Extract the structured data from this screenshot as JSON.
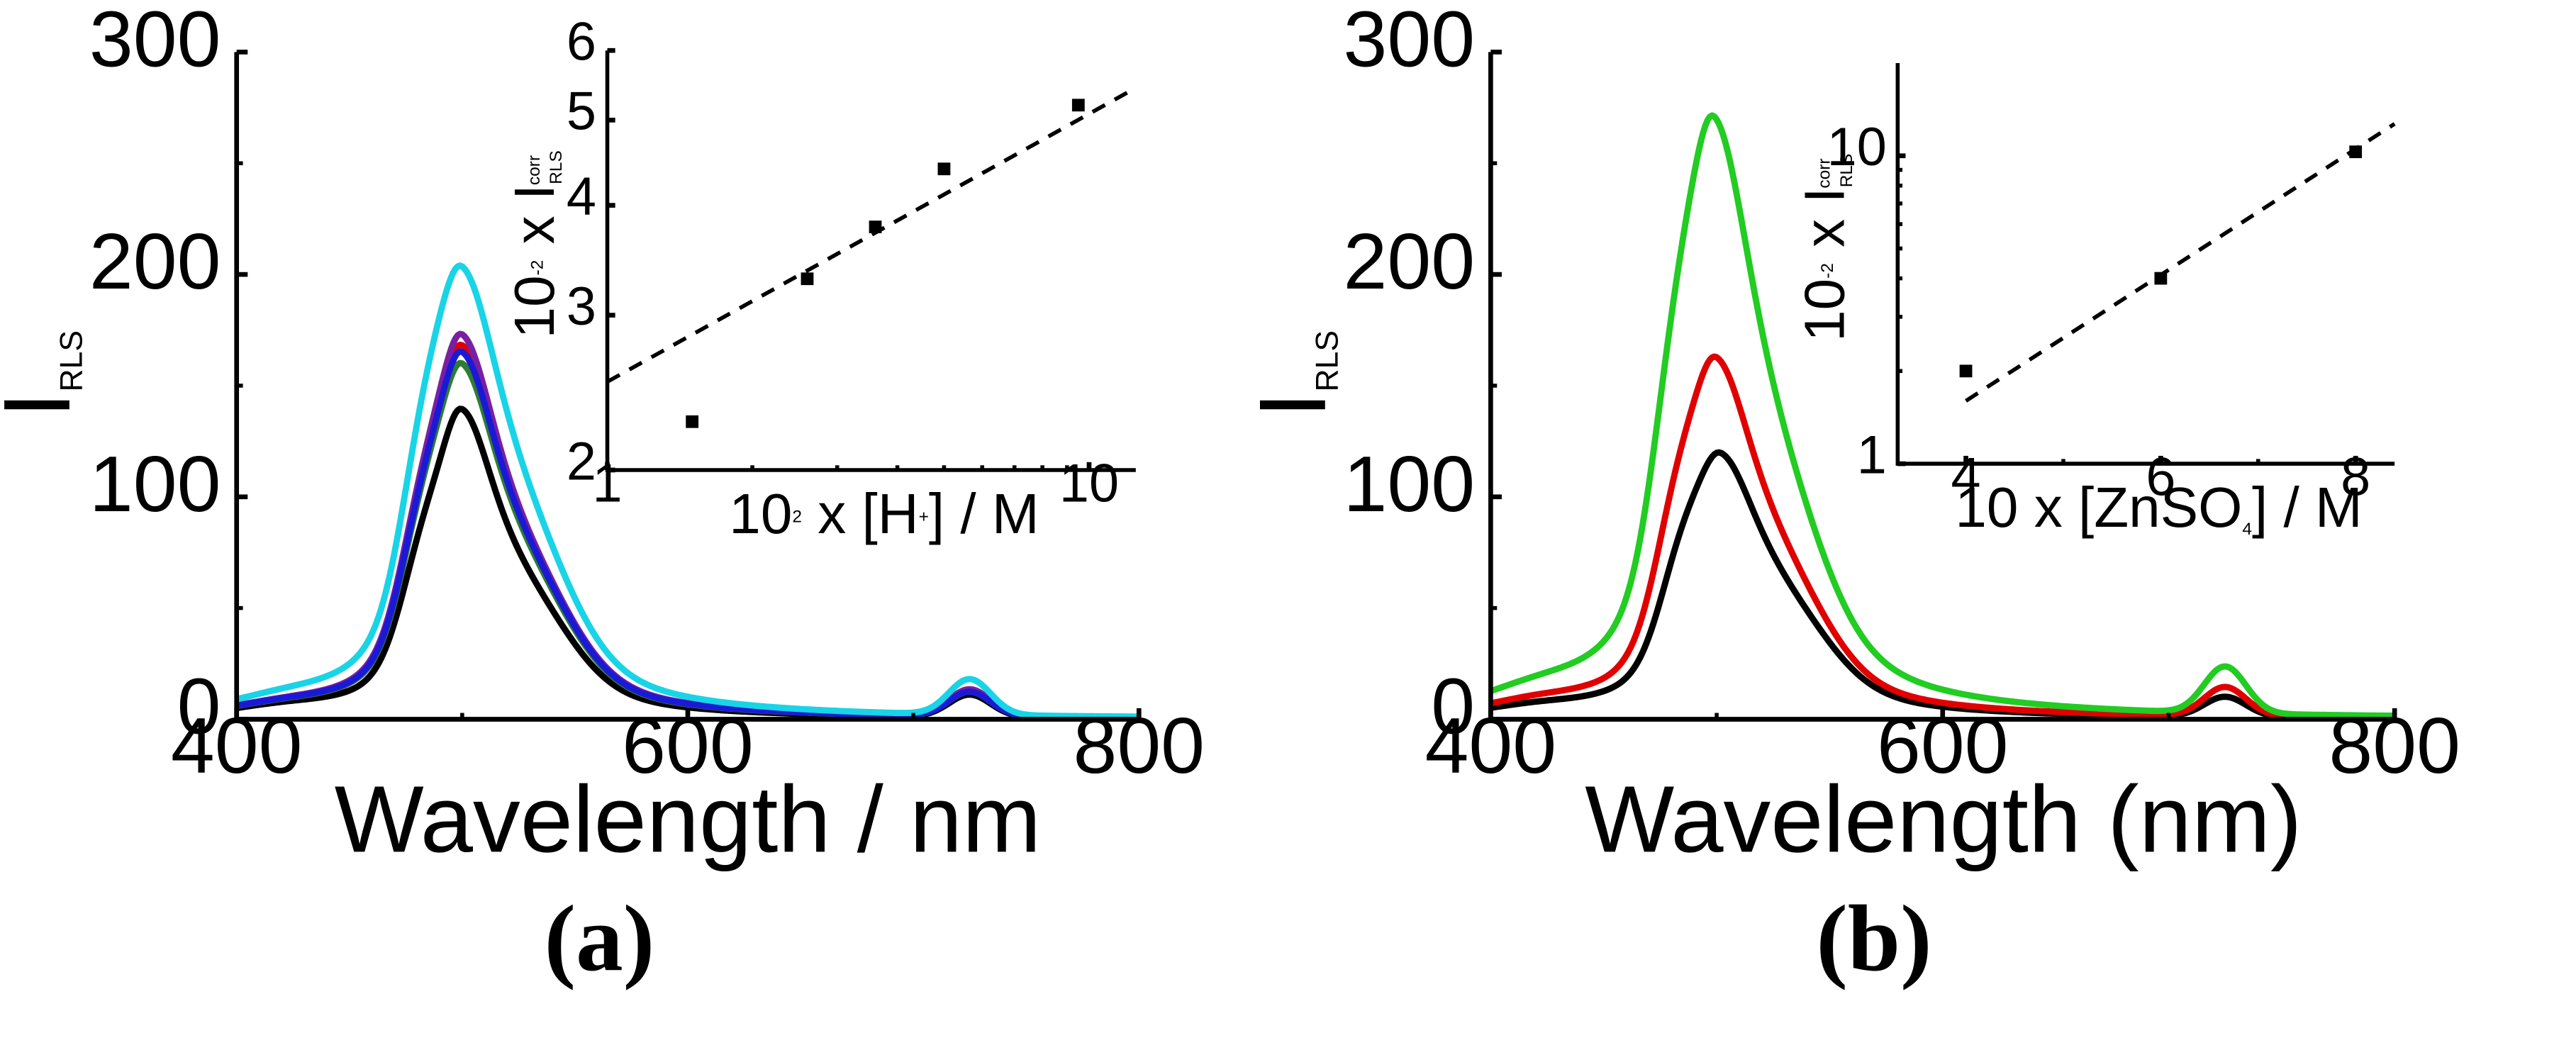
{
  "chart_data": [
    {
      "id": "a",
      "type": "line",
      "caption": "(a)",
      "xlabel": "Wavelength / nm",
      "ylabel": "I",
      "ylabel_sub": "RLS",
      "xlim": [
        400,
        800
      ],
      "ylim": [
        0,
        300
      ],
      "xticks": [
        400,
        600,
        800
      ],
      "yticks": [
        0,
        100,
        200,
        300
      ],
      "series": [
        {
          "name": "black",
          "color": "#000000",
          "peak": 135,
          "peak_x": 500,
          "hw_left": 16,
          "hw_right": 21,
          "shoulder": 32,
          "tail": 25,
          "second_peak": 10,
          "base": 3
        },
        {
          "name": "green",
          "color": "#2e7d32",
          "peak": 155,
          "peak_x": 500,
          "hw_left": 17,
          "hw_right": 22,
          "shoulder": 36,
          "tail": 28,
          "second_peak": 11,
          "base": 3
        },
        {
          "name": "red",
          "color": "#e00000",
          "peak": 163,
          "peak_x": 500,
          "hw_left": 17,
          "hw_right": 22,
          "shoulder": 37,
          "tail": 29,
          "second_peak": 12,
          "base": 3
        },
        {
          "name": "purple",
          "color": "#7b1fa2",
          "peak": 168,
          "peak_x": 500,
          "hw_left": 17,
          "hw_right": 22,
          "shoulder": 38,
          "tail": 29,
          "second_peak": 12,
          "base": 3
        },
        {
          "name": "blue",
          "color": "#1a1ad6",
          "peak": 160,
          "peak_x": 500,
          "hw_left": 17,
          "hw_right": 22,
          "shoulder": 37,
          "tail": 29,
          "second_peak": 11,
          "base": 3
        },
        {
          "name": "cyan",
          "color": "#19d4e6",
          "peak": 198,
          "peak_x": 500,
          "hw_left": 19,
          "hw_right": 24,
          "shoulder": 45,
          "tail": 33,
          "second_peak": 16,
          "base": 4
        }
      ],
      "inset": {
        "xscale": "log",
        "yscale": "log",
        "xlabel_pre": "10",
        "xlabel_pre_sup": "2",
        "xlabel_mid": " x [H",
        "xlabel_mid_sup": "+",
        "xlabel_post": "] / M",
        "ylabel_pre": "10",
        "ylabel_pre_sup": "-2",
        "ylabel_mid": " x I",
        "ylabel_sub": "RLS",
        "ylabel_sup": "corr",
        "xlim": [
          1,
          12.5
        ],
        "ylim": [
          2,
          6
        ],
        "xticks": [
          1,
          10
        ],
        "yticks": [
          2,
          3,
          4,
          5,
          6
        ],
        "x": [
          1.5,
          2.6,
          3.6,
          5.0,
          9.5
        ],
        "y": [
          2.27,
          3.3,
          3.78,
          4.4,
          5.2
        ],
        "fit": {
          "x": [
            1,
            12.2
          ],
          "y": [
            2.52,
            5.4
          ]
        }
      }
    },
    {
      "id": "b",
      "type": "line",
      "caption": "(b)",
      "xlabel": "Wavelength (nm)",
      "ylabel": "I",
      "ylabel_sub": "RLS",
      "xlim": [
        400,
        800
      ],
      "ylim": [
        0,
        300
      ],
      "xticks": [
        400,
        600,
        800
      ],
      "yticks": [
        0,
        100,
        200,
        300
      ],
      "series": [
        {
          "name": "black",
          "color": "#000000",
          "peak": 116,
          "peak_x": 502,
          "hw_left": 18,
          "hw_right": 23,
          "shoulder": 30,
          "tail": 22,
          "second_peak": 9,
          "base": 3
        },
        {
          "name": "red",
          "color": "#e00000",
          "peak": 158,
          "peak_x": 500,
          "hw_left": 18,
          "hw_right": 23,
          "shoulder": 38,
          "tail": 28,
          "second_peak": 13,
          "base": 4
        },
        {
          "name": "green",
          "color": "#22cc22",
          "peak": 265,
          "peak_x": 499,
          "hw_left": 19,
          "hw_right": 24,
          "shoulder": 56,
          "tail": 38,
          "second_peak": 21,
          "base": 6
        }
      ],
      "inset": {
        "xscale": "linear",
        "yscale": "log",
        "xlabel_pre": "10 x [ZnSO",
        "xlabel_pre_sub": "4",
        "xlabel_post": "] / M",
        "ylabel_pre": "10",
        "ylabel_pre_sup": "-2",
        "ylabel_mid": " x I",
        "ylabel_sub": "RLS",
        "ylabel_sup": "corr",
        "xlim": [
          3.3,
          8.4
        ],
        "ylim": [
          1,
          20
        ],
        "xticks": [
          4,
          6,
          8
        ],
        "yticks": [
          1,
          10
        ],
        "x": [
          4,
          6,
          8
        ],
        "y": [
          2.0,
          4.0,
          10.3
        ],
        "fit": {
          "x": [
            4,
            8.4
          ],
          "y": [
            1.6,
            12.7
          ]
        }
      }
    }
  ]
}
